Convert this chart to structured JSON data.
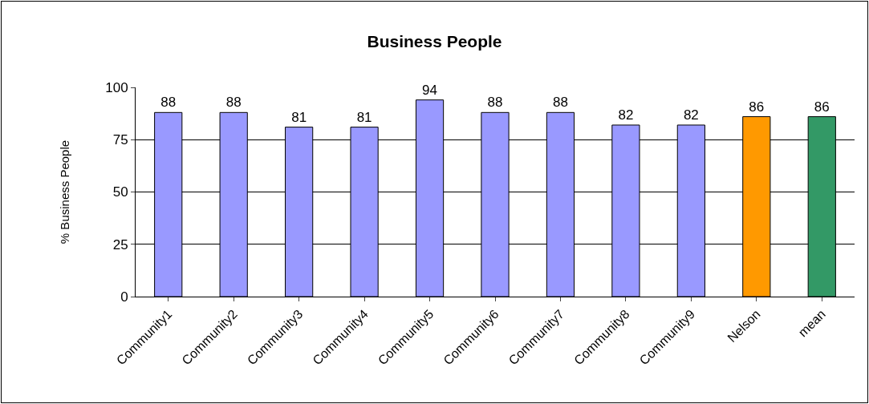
{
  "chart_data": {
    "type": "bar",
    "title": "Business People",
    "ylabel": "% Business People",
    "categories": [
      "Community1",
      "Community2",
      "Community3",
      "Community4",
      "Community5",
      "Community6",
      "Community7",
      "Community8",
      "Community9",
      "Nelson",
      "mean"
    ],
    "values": [
      88,
      88,
      81,
      81,
      94,
      88,
      88,
      82,
      82,
      86,
      86
    ],
    "colors": [
      "#9999ff",
      "#9999ff",
      "#9999ff",
      "#9999ff",
      "#9999ff",
      "#9999ff",
      "#9999ff",
      "#9999ff",
      "#9999ff",
      "#ff9900",
      "#339966"
    ],
    "ylim": [
      0,
      100
    ],
    "yticks": [
      0,
      25,
      50,
      75,
      100
    ],
    "grid": "y",
    "data_labels": true,
    "legend": false
  }
}
